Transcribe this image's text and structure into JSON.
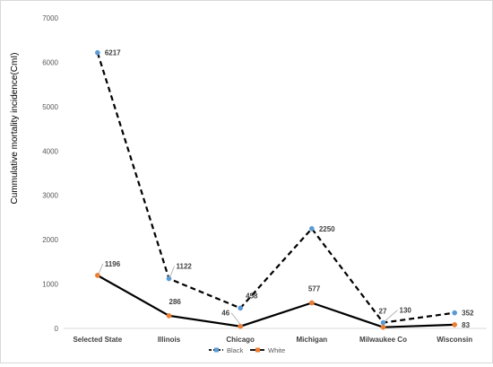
{
  "chart_data": {
    "type": "line",
    "title": "",
    "xlabel": "",
    "ylabel": "Cummulative mortality incidence(CmI)",
    "ylim": [
      0,
      7000
    ],
    "yticks": [
      0,
      1000,
      2000,
      3000,
      4000,
      5000,
      6000,
      7000
    ],
    "grid": false,
    "legend_position": "bottom",
    "categories": [
      "Selected State",
      "Illinois",
      "Chicago",
      "Michigan",
      "Milwaukee Co",
      "Wisconsin"
    ],
    "series": [
      {
        "name": "Black",
        "values": [
          6217,
          1122,
          458,
          2250,
          130,
          352
        ],
        "labels": [
          "6217",
          "1122",
          "458",
          "2250",
          "130",
          "352"
        ],
        "color": "#000000",
        "marker_color": "#5b9bd5",
        "line_style": "dashed"
      },
      {
        "name": "White",
        "values": [
          1196,
          286,
          46,
          577,
          27,
          83
        ],
        "labels": [
          "1196",
          "286",
          "46",
          "577",
          "27",
          "83"
        ],
        "color": "#000000",
        "marker_color": "#ed7d31",
        "line_style": "solid"
      }
    ]
  }
}
